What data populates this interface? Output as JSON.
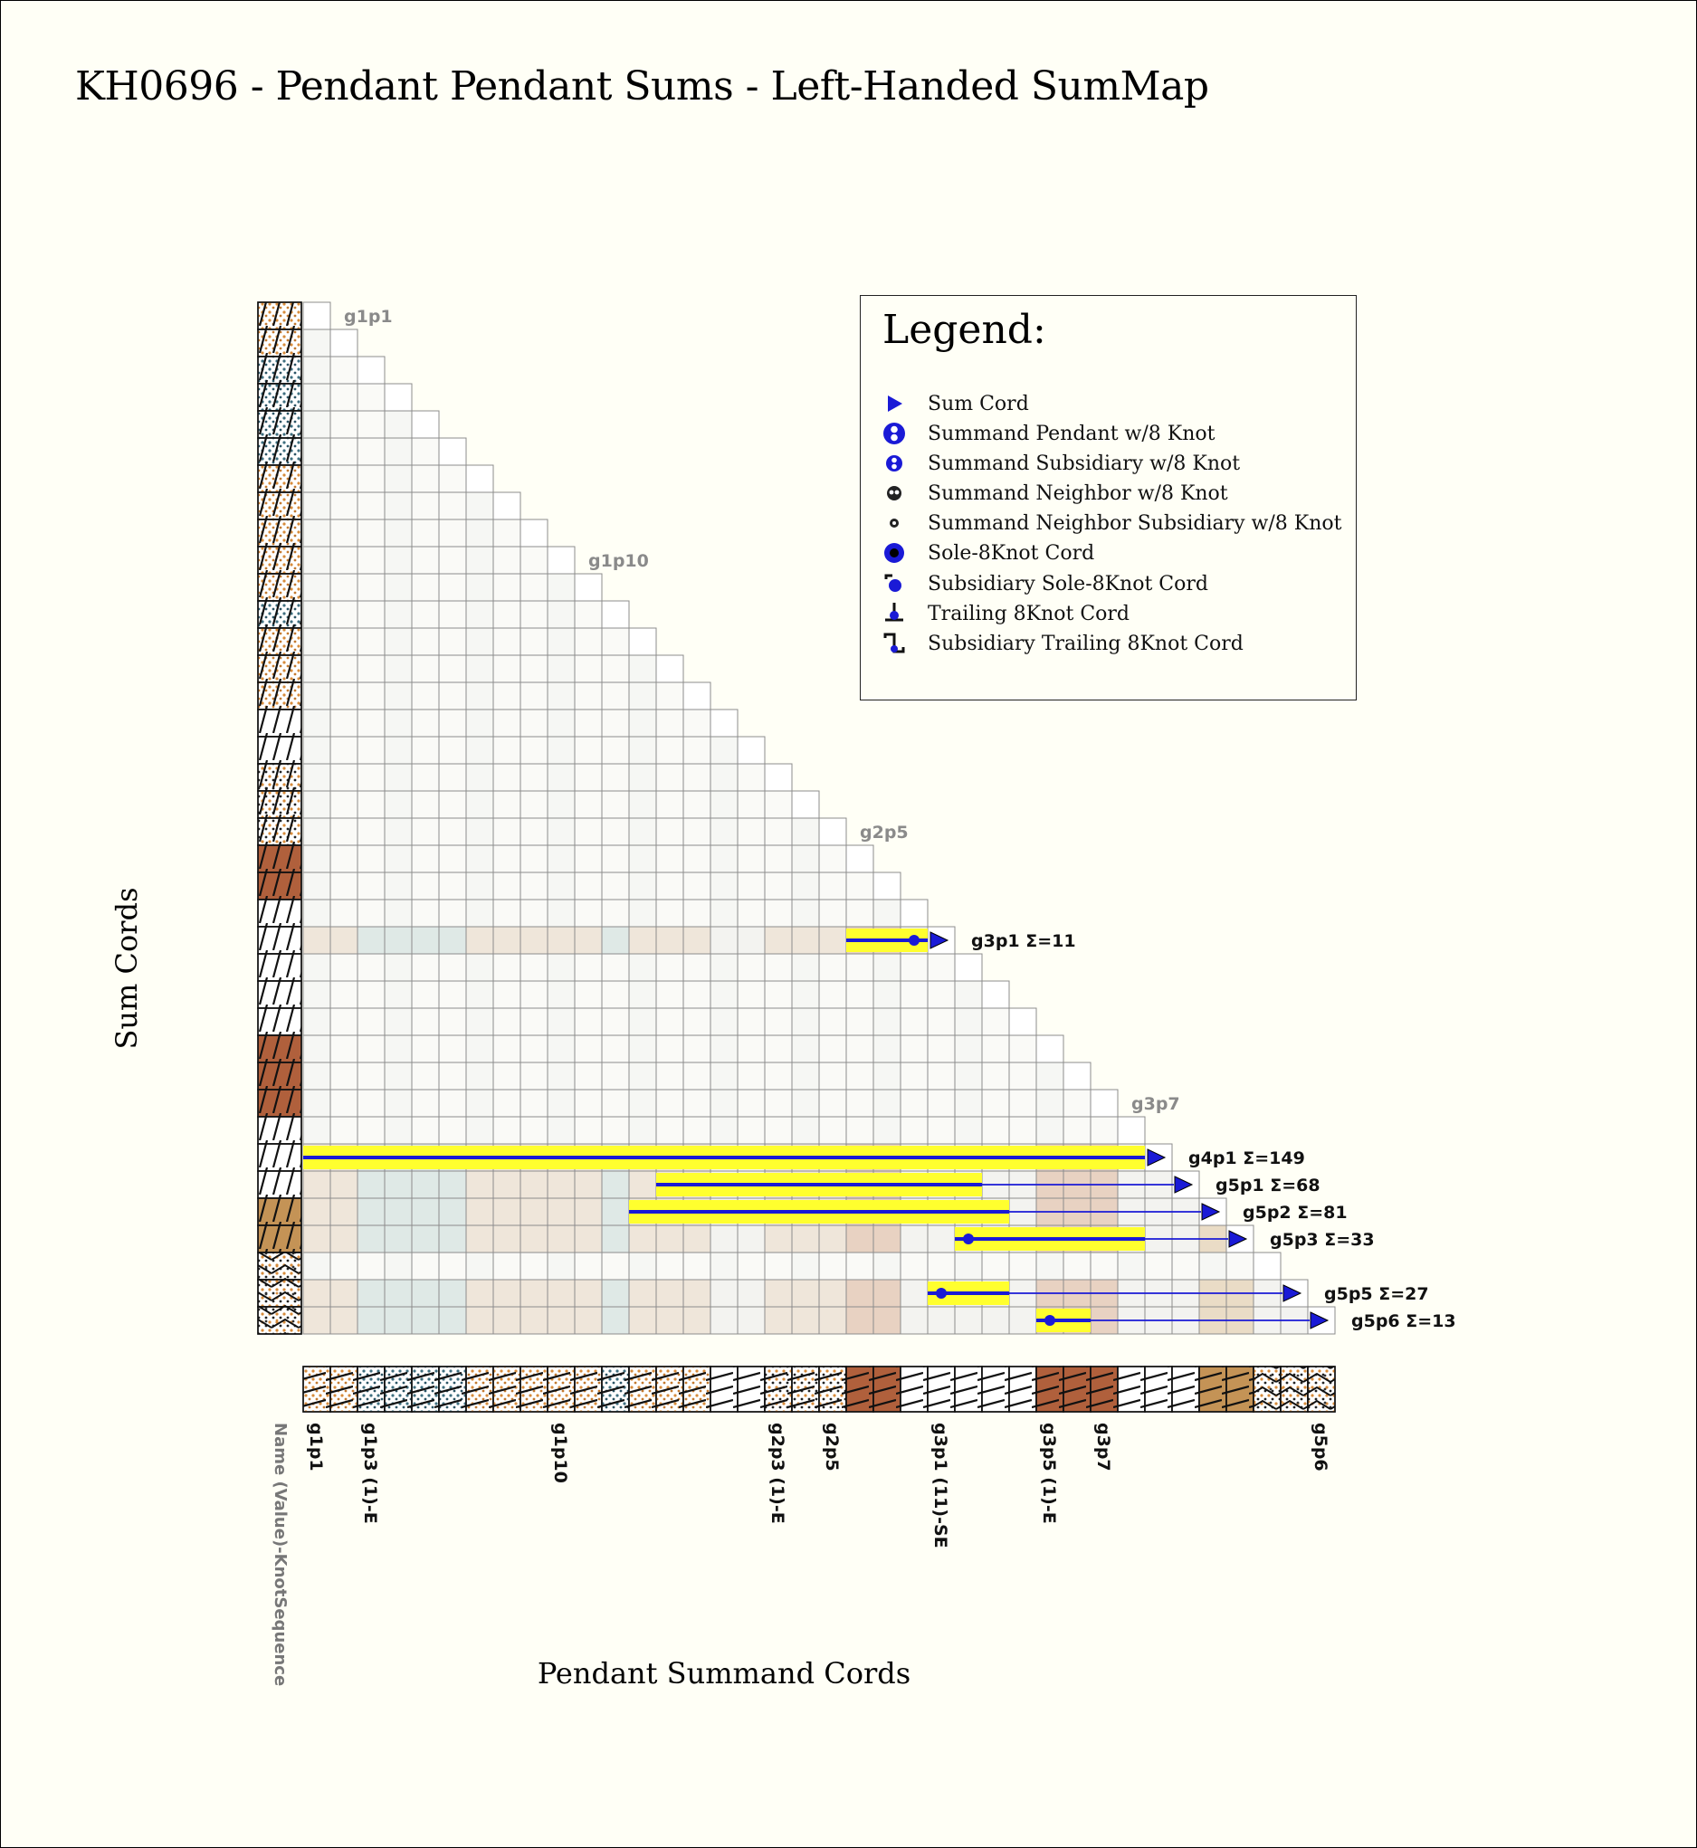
{
  "title": "KH0696 - Pendant Pendant Sums - Left-Handed SumMap",
  "axis": {
    "y_label": "Sum Cords",
    "x_label": "Pendant Summand Cords",
    "name_label": "Name (Value)-KnotSequence"
  },
  "legend": {
    "title": "Legend:",
    "items": [
      {
        "icon": "sum-cord-icon",
        "label": "Sum Cord"
      },
      {
        "icon": "summand-pendant-icon",
        "label": "Summand Pendant w/8 Knot"
      },
      {
        "icon": "summand-subsidiary-icon",
        "label": "Summand Subsidiary w/8 Knot"
      },
      {
        "icon": "summand-neighbor-icon",
        "label": "Summand Neighbor w/8 Knot"
      },
      {
        "icon": "summand-neighbor-subsidiary-icon",
        "label": "Summand Neighbor Subsidiary w/8 Knot"
      },
      {
        "icon": "sole-8knot-icon",
        "label": "Sole-8Knot Cord"
      },
      {
        "icon": "subsidiary-sole-8knot-icon",
        "label": "Subsidiary Sole-8Knot Cord"
      },
      {
        "icon": "trailing-8knot-icon",
        "label": "Trailing 8Knot Cord"
      },
      {
        "icon": "subsidiary-trailing-8knot-icon",
        "label": "Subsidiary Trailing 8Knot Cord"
      }
    ]
  },
  "colors": {
    "highlight": "#ffff2e",
    "line": "#1a1ad6",
    "cell_border": "#8c8c8c",
    "white_cord": "#f4f4f4",
    "brown_cord": "#b0603c",
    "tan_cord": "#c49356",
    "blue_grey_cord": "#5b7f8c",
    "orange_dot": "#d68b3c"
  },
  "chart_data": {
    "type": "table",
    "cord_count": 38,
    "cord_colors": [
      "O",
      "O",
      "B",
      "B",
      "B",
      "B",
      "O",
      "O",
      "O",
      "O",
      "O",
      "B",
      "O",
      "O",
      "O",
      "W",
      "W",
      "OK",
      "OK",
      "OK",
      "BR",
      "BR",
      "W",
      "W",
      "W",
      "W",
      "W",
      "BR",
      "BR",
      "BR",
      "W",
      "W",
      "W",
      "T",
      "T",
      "CK",
      "CK",
      "CK"
    ],
    "row_labels": [
      {
        "row": 0,
        "text": "g1p1"
      },
      {
        "row": 9,
        "text": "g1p10"
      },
      {
        "row": 19,
        "text": "g2p5"
      },
      {
        "row": 29,
        "text": "g3p7"
      }
    ],
    "x_tick_labels": [
      {
        "col": 0,
        "text": "g1p1"
      },
      {
        "col": 2,
        "text": "g1p3 (1)-E"
      },
      {
        "col": 9,
        "text": "g1p10"
      },
      {
        "col": 17,
        "text": "g2p3 (1)-E"
      },
      {
        "col": 19,
        "text": "g2p5"
      },
      {
        "col": 23,
        "text": "g3p1 (11)-SE"
      },
      {
        "col": 27,
        "text": "g3p5 (1)-E"
      },
      {
        "col": 29,
        "text": "g3p7"
      },
      {
        "col": 37,
        "text": "g5p6"
      }
    ],
    "sums": [
      {
        "row": 23,
        "label": "g3p1 Σ=11",
        "start": 20,
        "end": 22,
        "dot": 22
      },
      {
        "row": 31,
        "label": "g4p1 Σ=149",
        "start": 0,
        "end": 30,
        "dot": null
      },
      {
        "row": 32,
        "label": "g5p1 Σ=68",
        "start": 13,
        "end": 24,
        "dot": null
      },
      {
        "row": 33,
        "label": "g5p2 Σ=81",
        "start": 12,
        "end": 25,
        "dot": null
      },
      {
        "row": 34,
        "label": "g5p3 Σ=33",
        "start": 24,
        "end": 30,
        "dot": 24
      },
      {
        "row": 36,
        "label": "g5p5 Σ=27",
        "start": 23,
        "end": 25,
        "dot": 23
      },
      {
        "row": 37,
        "label": "g5p6 Σ=13",
        "start": 27,
        "end": 28,
        "dot": 27
      }
    ]
  }
}
